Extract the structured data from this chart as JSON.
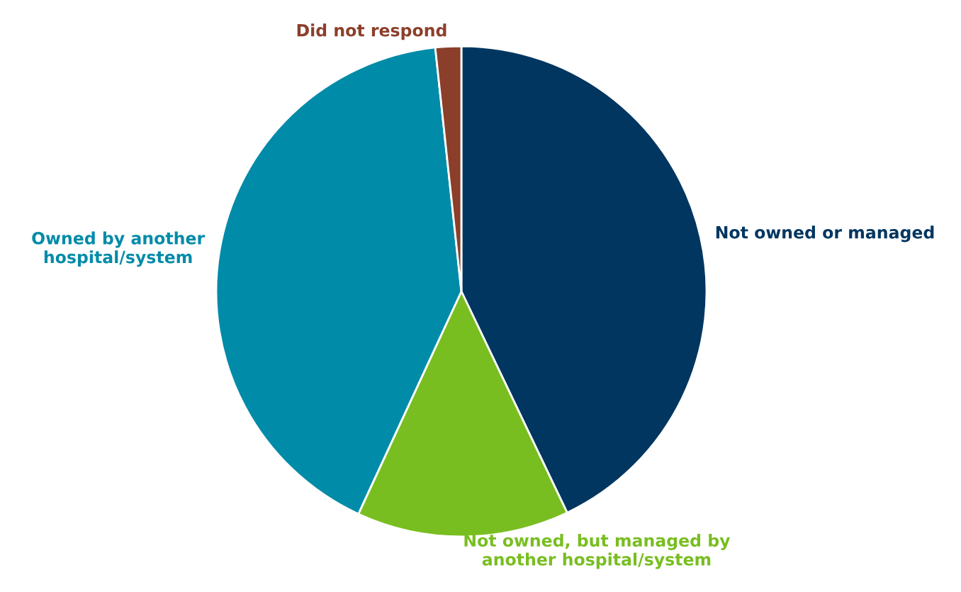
{
  "chart_data": {
    "type": "pie",
    "categories": [
      "Not owned or managed",
      "Not owned, but managed by\nanother hospital/system",
      "Owned by another\nhospital/system",
      "Did not respond"
    ],
    "values": [
      42.9,
      14.0,
      41.4,
      1.7
    ],
    "colors": [
      "#003660",
      "#78be20",
      "#008ba8",
      "#8b3f2a"
    ]
  }
}
